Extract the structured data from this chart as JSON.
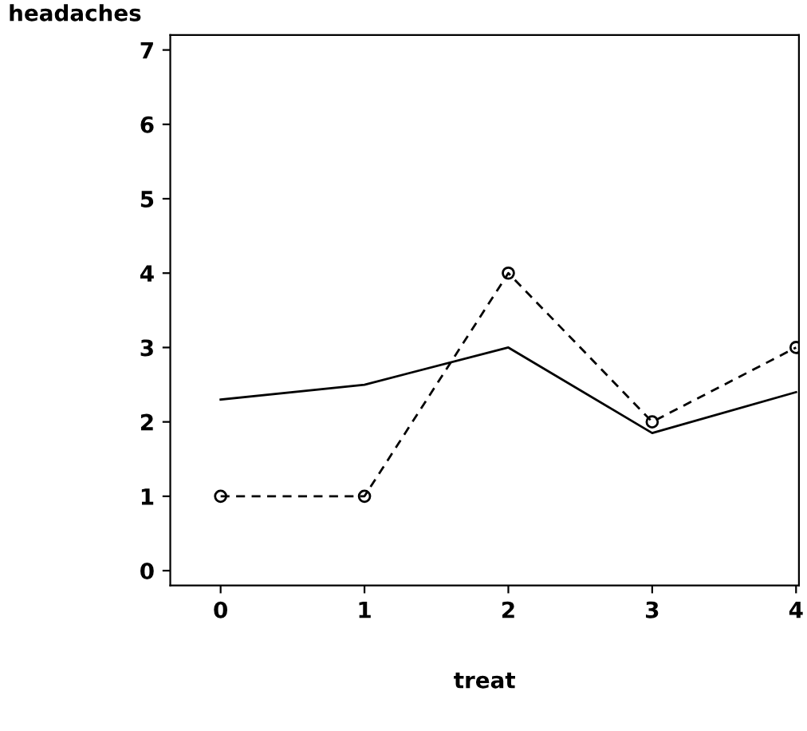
{
  "chart_data": {
    "type": "line",
    "xlabel": "treat",
    "ylabel": "headaches",
    "x": [
      0,
      1,
      2,
      3,
      4
    ],
    "series": [
      {
        "color": "#000000",
        "values": [
          2.3,
          2.5,
          3.0,
          1.85,
          2.4
        ],
        "line_style": "solid",
        "marker": "none"
      },
      {
        "color": "#000000",
        "values": [
          1,
          1,
          4,
          2,
          3
        ],
        "line_style": "dashed",
        "marker": "circle"
      }
    ],
    "xlim": [
      -0.35,
      4.02
    ],
    "ylim": [
      -0.2,
      7.2
    ],
    "xticks": [
      0,
      1,
      2,
      3,
      4
    ],
    "yticks": [
      0,
      1,
      2,
      3,
      4,
      5,
      6,
      7
    ],
    "grid": false,
    "legend": false
  }
}
